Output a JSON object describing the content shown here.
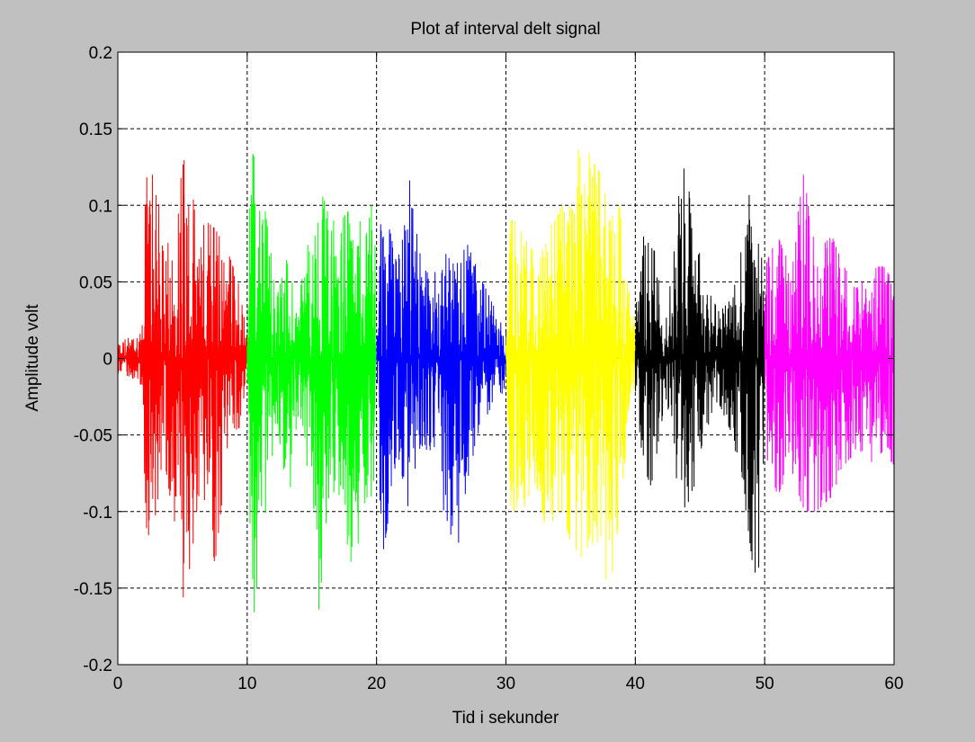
{
  "chart_data": {
    "type": "line",
    "title": "Plot af interval delt signal",
    "xlabel": "Tid i sekunder",
    "ylabel": "Amplitude volt",
    "xlim": [
      0,
      60
    ],
    "ylim": [
      -0.2,
      0.2
    ],
    "x_ticks": [
      0,
      10,
      20,
      30,
      40,
      50,
      60
    ],
    "x_tick_labels": [
      "0",
      "10",
      "20",
      "30",
      "40",
      "50",
      "60"
    ],
    "y_ticks": [
      -0.2,
      -0.15,
      -0.1,
      -0.05,
      0,
      0.05,
      0.1,
      0.15,
      0.2
    ],
    "y_tick_labels": [
      "-0.2",
      "-0.15",
      "-0.1",
      "-0.05",
      "0",
      "0.05",
      "0.1",
      "0.15",
      "0.2"
    ],
    "grid": true,
    "grid_style": "dashed",
    "legend": false,
    "series": [
      {
        "color": "#ff0000",
        "x_range": [
          0,
          10
        ],
        "envelope": [
          [
            0,
            0.012,
            -0.01
          ],
          [
            1,
            0.015,
            -0.012
          ],
          [
            1.8,
            0.02,
            -0.018
          ],
          [
            2.2,
            0.12,
            -0.12
          ],
          [
            3.0,
            0.12,
            -0.1
          ],
          [
            3.5,
            0.07,
            -0.06
          ],
          [
            4.2,
            0.08,
            -0.1
          ],
          [
            5.1,
            0.13,
            -0.165
          ],
          [
            6.0,
            0.1,
            -0.11
          ],
          [
            6.8,
            0.09,
            -0.09
          ],
          [
            7.5,
            0.085,
            -0.135
          ],
          [
            8.5,
            0.07,
            -0.06
          ],
          [
            9.3,
            0.05,
            -0.05
          ],
          [
            10,
            0.015,
            -0.012
          ]
        ]
      },
      {
        "color": "#00ff00",
        "x_range": [
          10,
          20
        ],
        "envelope": [
          [
            10,
            0.02,
            -0.03
          ],
          [
            10.3,
            0.137,
            -0.19
          ],
          [
            11.0,
            0.12,
            -0.15
          ],
          [
            11.5,
            0.09,
            -0.1
          ],
          [
            12.3,
            0.04,
            -0.04
          ],
          [
            13.2,
            0.07,
            -0.1
          ],
          [
            14.0,
            0.04,
            -0.04
          ],
          [
            15.0,
            0.09,
            -0.11
          ],
          [
            15.6,
            0.115,
            -0.17
          ],
          [
            16.4,
            0.09,
            -0.08
          ],
          [
            17.2,
            0.09,
            -0.1
          ],
          [
            18.2,
            0.1,
            -0.14
          ],
          [
            19.2,
            0.08,
            -0.09
          ],
          [
            19.8,
            0.11,
            -0.1
          ],
          [
            20,
            0.02,
            -0.02
          ]
        ]
      },
      {
        "color": "#0000ff",
        "x_range": [
          20,
          30
        ],
        "envelope": [
          [
            20,
            0.02,
            -0.02
          ],
          [
            20.3,
            0.11,
            -0.14
          ],
          [
            21.0,
            0.085,
            -0.1
          ],
          [
            21.6,
            0.06,
            -0.06
          ],
          [
            22.5,
            0.12,
            -0.1
          ],
          [
            23.3,
            0.07,
            -0.06
          ],
          [
            24.2,
            0.05,
            -0.06
          ],
          [
            25.2,
            0.07,
            -0.1
          ],
          [
            26.1,
            0.06,
            -0.135
          ],
          [
            27.0,
            0.075,
            -0.08
          ],
          [
            28.2,
            0.05,
            -0.04
          ],
          [
            29.3,
            0.03,
            -0.03
          ],
          [
            30,
            0.02,
            -0.02
          ]
        ]
      },
      {
        "color": "#ffff00",
        "x_range": [
          30,
          40
        ],
        "envelope": [
          [
            30,
            0.02,
            -0.02
          ],
          [
            30.4,
            0.09,
            -0.1
          ],
          [
            31.3,
            0.09,
            -0.1
          ],
          [
            32.3,
            0.07,
            -0.08
          ],
          [
            33.3,
            0.09,
            -0.12
          ],
          [
            34.3,
            0.1,
            -0.1
          ],
          [
            35.0,
            0.1,
            -0.12
          ],
          [
            35.8,
            0.15,
            -0.13
          ],
          [
            36.6,
            0.13,
            -0.12
          ],
          [
            37.4,
            0.12,
            -0.13
          ],
          [
            38.0,
            0.09,
            -0.155
          ],
          [
            38.8,
            0.1,
            -0.1
          ],
          [
            39.4,
            0.05,
            -0.05
          ],
          [
            40,
            0.02,
            -0.02
          ]
        ]
      },
      {
        "color": "#000000",
        "x_range": [
          40,
          50
        ],
        "envelope": [
          [
            40,
            0.03,
            -0.02
          ],
          [
            40.6,
            0.08,
            -0.07
          ],
          [
            41.5,
            0.07,
            -0.09
          ],
          [
            42.3,
            0.02,
            -0.02
          ],
          [
            43.0,
            0.07,
            -0.08
          ],
          [
            43.6,
            0.13,
            -0.1
          ],
          [
            44.4,
            0.1,
            -0.09
          ],
          [
            45.3,
            0.05,
            -0.05
          ],
          [
            46.5,
            0.03,
            -0.03
          ],
          [
            47.5,
            0.04,
            -0.05
          ],
          [
            48.4,
            0.08,
            -0.09
          ],
          [
            49.0,
            0.12,
            -0.13
          ],
          [
            49.4,
            0.09,
            -0.163
          ],
          [
            50,
            0.05,
            -0.05
          ]
        ]
      },
      {
        "color": "#ff00ff",
        "x_range": [
          50,
          60
        ],
        "envelope": [
          [
            50,
            0.06,
            -0.06
          ],
          [
            51.0,
            0.08,
            -0.09
          ],
          [
            52.0,
            0.06,
            -0.07
          ],
          [
            53.0,
            0.12,
            -0.1
          ],
          [
            54.0,
            0.07,
            -0.1
          ],
          [
            55.2,
            0.08,
            -0.09
          ],
          [
            56.1,
            0.06,
            -0.07
          ],
          [
            57.2,
            0.05,
            -0.06
          ],
          [
            58.2,
            0.06,
            -0.07
          ],
          [
            59.2,
            0.06,
            -0.06
          ],
          [
            60,
            0.05,
            -0.07
          ]
        ]
      }
    ]
  }
}
